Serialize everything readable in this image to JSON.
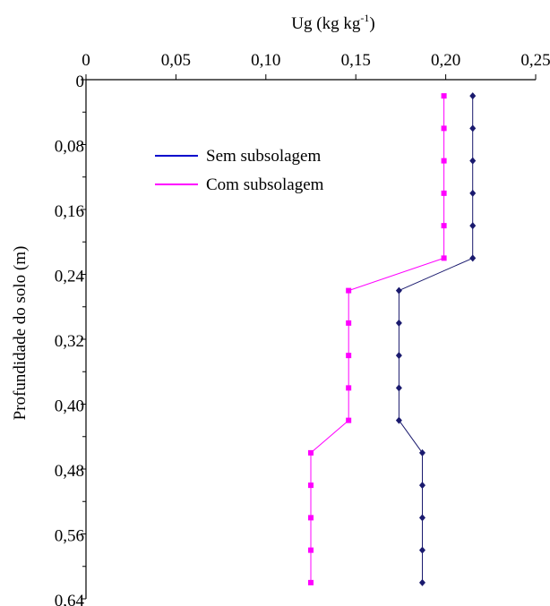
{
  "chart_data": {
    "type": "line",
    "xlabel": {
      "main": "Ug (kg kg",
      "sup": "-1",
      "close": ")"
    },
    "ylabel": "Profundidade do solo (m)",
    "xlim": [
      0,
      0.25
    ],
    "ylim": [
      0,
      0.64
    ],
    "y_inverted": true,
    "x_axis_position": "top",
    "x_ticks": [
      0,
      0.05,
      0.1,
      0.15,
      0.2,
      0.25
    ],
    "x_tick_labels": [
      "0",
      "0,05",
      "0,10",
      "0,15",
      "0,20",
      "0,25"
    ],
    "y_ticks": [
      0,
      0.08,
      0.16,
      0.24,
      0.32,
      0.4,
      0.48,
      0.56,
      0.64
    ],
    "y_tick_labels": [
      "0",
      "0,08",
      "0,16",
      "0,24",
      "0,32",
      "0,40",
      "0,48",
      "0,56",
      "0,64"
    ],
    "y_minor_ticks": [
      0.04,
      0.12,
      0.2,
      0.28,
      0.36,
      0.44,
      0.52,
      0.6
    ],
    "grid": false,
    "legend_position": "top-left",
    "series": [
      {
        "name": "Sem subsolagem",
        "color": "#1a1a6e",
        "marker": "diamond",
        "points": [
          [
            0.215,
            0.02
          ],
          [
            0.215,
            0.06
          ],
          [
            0.215,
            0.1
          ],
          [
            0.215,
            0.14
          ],
          [
            0.215,
            0.18
          ],
          [
            0.215,
            0.22
          ],
          [
            0.174,
            0.26
          ],
          [
            0.174,
            0.3
          ],
          [
            0.174,
            0.34
          ],
          [
            0.174,
            0.38
          ],
          [
            0.174,
            0.42
          ],
          [
            0.187,
            0.46
          ],
          [
            0.187,
            0.5
          ],
          [
            0.187,
            0.54
          ],
          [
            0.187,
            0.58
          ],
          [
            0.187,
            0.62
          ]
        ]
      },
      {
        "name": "Com subsolagem",
        "color": "#ff00ff",
        "marker": "square",
        "points": [
          [
            0.199,
            0.02
          ],
          [
            0.199,
            0.06
          ],
          [
            0.199,
            0.1
          ],
          [
            0.199,
            0.14
          ],
          [
            0.199,
            0.18
          ],
          [
            0.199,
            0.22
          ],
          [
            0.146,
            0.26
          ],
          [
            0.146,
            0.3
          ],
          [
            0.146,
            0.34
          ],
          [
            0.146,
            0.38
          ],
          [
            0.146,
            0.42
          ],
          [
            0.125,
            0.46
          ],
          [
            0.125,
            0.5
          ],
          [
            0.125,
            0.54
          ],
          [
            0.125,
            0.58
          ],
          [
            0.125,
            0.62
          ]
        ]
      }
    ],
    "legend_colors": [
      "#0000cc",
      "#ff00ff"
    ]
  }
}
